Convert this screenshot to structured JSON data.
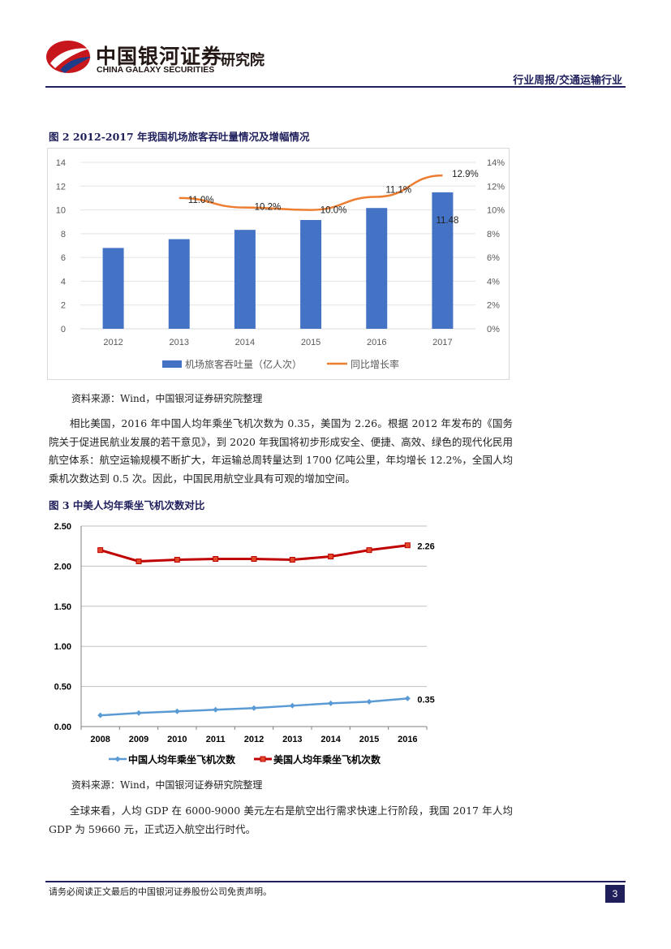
{
  "header": {
    "logo_cn": "中国银河证券",
    "logo_en": "CHINA GALAXY SECURITIES",
    "institute": "研究院",
    "report_type": "行业周报/交通运输行业"
  },
  "figure2": {
    "title": "图 2 2012-2017 年我国机场旅客吞吐量情况及增幅情况",
    "source": "资料来源：Wind，中国银河证券研究院整理"
  },
  "paragraph1": "相比美国，2016 年中国人均年乘坐飞机次数为 0.35，美国为 2.26。根据 2012 年发布的《国务院关于促进民航业发展的若干意见》，到 2020 年我国将初步形成安全、便捷、高效、绿色的现代化民用航空体系：航空运输规模不断扩大，年运输总周转量达到 1700 亿吨公里，年均增长 12.2%，全国人均乘机次数达到 0.5 次。因此，中国民用航空业具有可观的增加空间。",
  "figure3": {
    "title": "图 3 中美人均年乘坐飞机次数对比",
    "source": "资料来源：Wind，中国银河证券研究院整理"
  },
  "paragraph2": "全球来看，人均 GDP 在 6000-9000 美元左右是航空出行需求快速上行阶段，我国 2017 年人均 GDP 为 59660 元，正式迈入航空出行时代。",
  "footer": {
    "disclaimer": "请务必阅读正文最后的中国银河证券股份公司免责声明。",
    "page": "3"
  },
  "chart_data": [
    {
      "type": "bar",
      "categories": [
        "2012",
        "2013",
        "2014",
        "2015",
        "2016",
        "2017"
      ],
      "series": [
        {
          "name": "机场旅客吞吐量（亿人次）",
          "axis": "left",
          "color": "#4472c4",
          "values": [
            6.8,
            7.54,
            8.32,
            9.15,
            10.16,
            11.48
          ]
        },
        {
          "name": "同比增长率",
          "axis": "right",
          "type": "line",
          "color": "#ed7d31",
          "values": [
            null,
            11.0,
            10.2,
            10.0,
            11.1,
            12.9
          ]
        }
      ],
      "data_labels": {
        "bar": [
          {
            "index": 5,
            "text": "11.48"
          }
        ],
        "line": [
          {
            "index": 1,
            "text": "11.0%"
          },
          {
            "index": 2,
            "text": "10.2%"
          },
          {
            "index": 3,
            "text": "10.0%"
          },
          {
            "index": 4,
            "text": "11.1%"
          },
          {
            "index": 5,
            "text": "12.9%"
          }
        ]
      },
      "ylim_left": [
        0,
        14
      ],
      "yticks_left": [
        "0",
        "2",
        "4",
        "6",
        "8",
        "10",
        "12",
        "14"
      ],
      "ylim_right": [
        0,
        14
      ],
      "yticks_right": [
        "0%",
        "2%",
        "4%",
        "6%",
        "8%",
        "10%",
        "12%",
        "14%"
      ],
      "legend": "bottom"
    },
    {
      "type": "line",
      "categories": [
        "2008",
        "2009",
        "2010",
        "2011",
        "2012",
        "2013",
        "2014",
        "2015",
        "2016"
      ],
      "series": [
        {
          "name": "中国人均年乘坐飞机次数",
          "color": "#5b9bd5",
          "marker": "diamond",
          "values": [
            0.14,
            0.17,
            0.19,
            0.21,
            0.23,
            0.26,
            0.29,
            0.31,
            0.35
          ]
        },
        {
          "name": "美国人均年乘坐飞机次数",
          "color": "#c00000",
          "marker": "square",
          "values": [
            2.2,
            2.06,
            2.08,
            2.09,
            2.09,
            2.08,
            2.12,
            2.2,
            2.26
          ]
        }
      ],
      "end_labels": [
        "0.35",
        "2.26"
      ],
      "ylim": [
        0,
        2.5
      ],
      "yticks": [
        "0.00",
        "0.50",
        "1.00",
        "1.50",
        "2.00",
        "2.50"
      ],
      "legend": "bottom"
    }
  ]
}
